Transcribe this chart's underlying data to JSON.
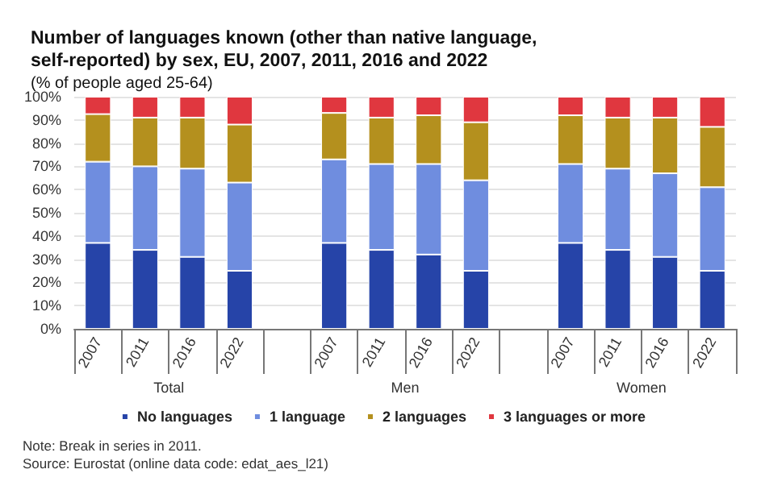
{
  "chart_data": {
    "type": "bar",
    "stacked": true,
    "title": "Number of languages known (other than native language, self-reported) by sex, EU, 2007, 2011, 2016 and 2022",
    "subtitle": "(% of people aged 25-64)",
    "categories": [
      "2007",
      "2011",
      "2016",
      "2022",
      null,
      "2007",
      "2011",
      "2016",
      "2022",
      null,
      "2007",
      "2011",
      "2016",
      "2022"
    ],
    "series": [
      {
        "name": "No languages",
        "color": "#2644a8",
        "values": [
          37,
          34,
          31,
          25,
          null,
          37,
          34,
          32,
          25,
          null,
          37,
          34,
          31,
          25
        ]
      },
      {
        "name": "1 language",
        "color": "#6f8ddf",
        "values": [
          35,
          36,
          38,
          38,
          null,
          36,
          37,
          39,
          39,
          null,
          34,
          35,
          36,
          36
        ]
      },
      {
        "name": "2 languages",
        "color": "#b4901e",
        "values": [
          20.5,
          21,
          22,
          25,
          null,
          20,
          20,
          21,
          25,
          null,
          21,
          22,
          24,
          26
        ]
      },
      {
        "name": "3 languages or more",
        "color": "#e0373f",
        "values": [
          7.5,
          9,
          9,
          12,
          null,
          7,
          9,
          8,
          11,
          null,
          8,
          9,
          9,
          13
        ]
      }
    ],
    "ylim": [
      0,
      100
    ],
    "yticks": [
      {
        "value": 0,
        "label": "0%"
      },
      {
        "value": 10,
        "label": "10%"
      },
      {
        "value": 20,
        "label": "20%"
      },
      {
        "value": 30,
        "label": "30%"
      },
      {
        "value": 40,
        "label": "40%"
      },
      {
        "value": 50,
        "label": "50%"
      },
      {
        "value": 60,
        "label": "60%"
      },
      {
        "value": 70,
        "label": "70%"
      },
      {
        "value": 80,
        "label": "80%"
      },
      {
        "value": 90,
        "label": "90%"
      },
      {
        "value": 100,
        "label": "100%"
      }
    ],
    "grid": "y",
    "legend": "bottom",
    "annotations": [
      "Total",
      "Men",
      "Women",
      "Note: Break in series in 2011.",
      "Source: Eurostat (online data code: edat_aes_l21)"
    ]
  }
}
